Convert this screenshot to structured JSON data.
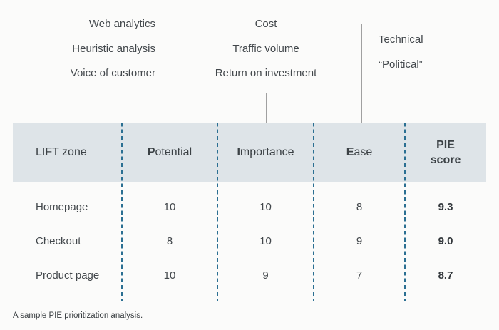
{
  "annotations": {
    "potential_factors": {
      "items": [
        "Web analytics",
        "Heuristic analysis",
        "Voice of customer"
      ],
      "points_to": "Potential"
    },
    "importance_factors": {
      "items": [
        "Cost",
        "Traffic volume",
        "Return on investment"
      ],
      "points_to": "Importance"
    },
    "ease_factors": {
      "items": [
        "Technical",
        "“Political”"
      ],
      "points_to": "Ease"
    }
  },
  "table": {
    "headers": {
      "zone": {
        "label": "LIFT zone"
      },
      "potential": {
        "bold": "P",
        "rest": "otential"
      },
      "importance": {
        "bold": "I",
        "rest": "mportance"
      },
      "ease": {
        "bold": "E",
        "rest": "ase"
      },
      "pie_score": {
        "line1": "PIE",
        "line2": "score"
      }
    },
    "rows": [
      {
        "zone": "Homepage",
        "potential": "10",
        "importance": "10",
        "ease": "8",
        "pie_score": "9.3"
      },
      {
        "zone": "Checkout",
        "potential": "8",
        "importance": "10",
        "ease": "9",
        "pie_score": "9.0"
      },
      {
        "zone": "Product page",
        "potential": "10",
        "importance": "9",
        "ease": "7",
        "pie_score": "8.7"
      }
    ]
  },
  "caption": "A sample PIE prioritization analysis.",
  "colors": {
    "header_bg": "#dee4e8",
    "dashed_separator": "#2b6f92",
    "callout_line": "#a0a0a0",
    "text": "#42474b",
    "background": "#fbfbfa"
  }
}
